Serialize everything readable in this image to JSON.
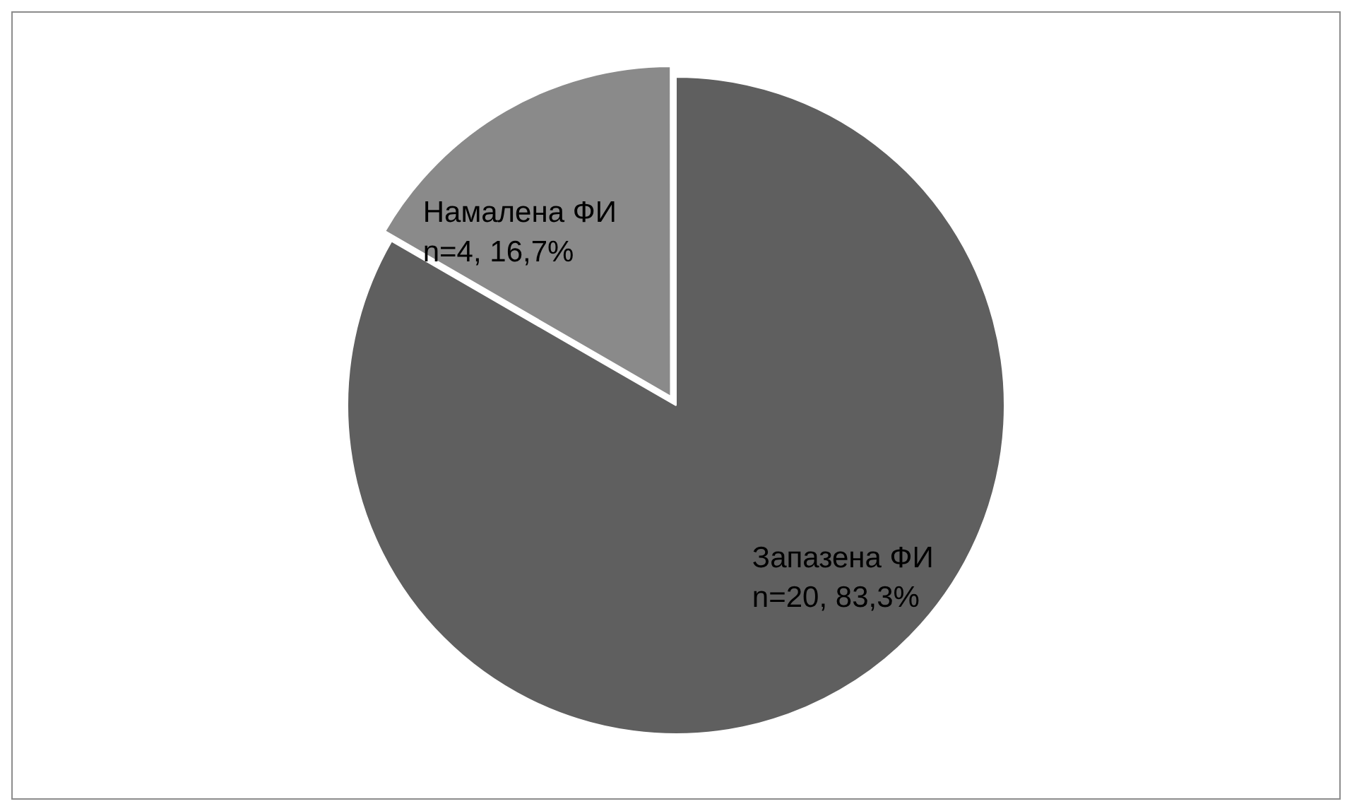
{
  "chart_data": {
    "type": "pie",
    "categories": [
      "Запазена ФИ",
      "Намалена ФИ"
    ],
    "values": [
      20,
      4
    ],
    "colors": [
      "#5f5f5f",
      "#8a8a8a"
    ],
    "value_labels": [
      "n=20, 83,3%",
      "n=4, 16,7%"
    ],
    "legend": false
  }
}
